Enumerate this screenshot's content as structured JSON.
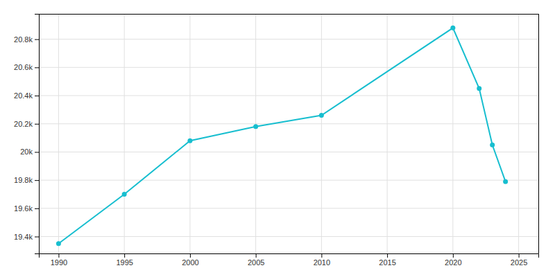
{
  "chart_data": {
    "type": "line",
    "x": [
      1990,
      1995,
      2000,
      2005,
      2010,
      2020,
      2022,
      2023,
      2024
    ],
    "values": [
      19350,
      19700,
      20080,
      20180,
      20260,
      20880,
      20450,
      20050,
      19790
    ],
    "color": "#17BECF",
    "marker": "circle",
    "xlim": [
      1988.5,
      2026.5
    ],
    "ylim": [
      19280,
      20980
    ],
    "xticks": [
      1990,
      1995,
      2000,
      2005,
      2010,
      2015,
      2020,
      2025
    ],
    "yticks": [
      {
        "value": 19400,
        "label": "19.4k"
      },
      {
        "value": 19600,
        "label": "19.6k"
      },
      {
        "value": 19800,
        "label": "19.8k"
      },
      {
        "value": 20000,
        "label": "20k"
      },
      {
        "value": 20200,
        "label": "20.2k"
      },
      {
        "value": 20400,
        "label": "20.4k"
      },
      {
        "value": 20600,
        "label": "20.6k"
      },
      {
        "value": 20800,
        "label": "20.8k"
      }
    ],
    "grid": true
  }
}
